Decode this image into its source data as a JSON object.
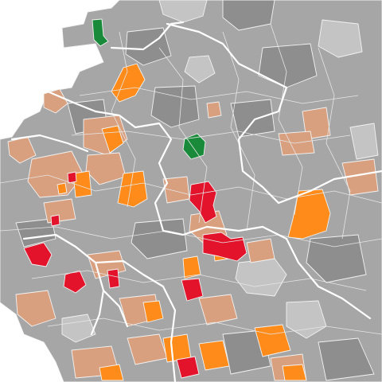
{
  "map": {
    "colors": {
      "background": "#ffffff",
      "gray_dark": "#8e8e8e",
      "gray": "#a6a6a6",
      "gray_light": "#c4c4c4",
      "tan": "#d9a07f",
      "orange": "#ff8c1a",
      "red": "#e3132c",
      "green": "#198a3a",
      "border": "#ffffff"
    },
    "category_counts_visible": {
      "green": 2,
      "red": 9,
      "orange": 14,
      "tan": 20
    }
  }
}
